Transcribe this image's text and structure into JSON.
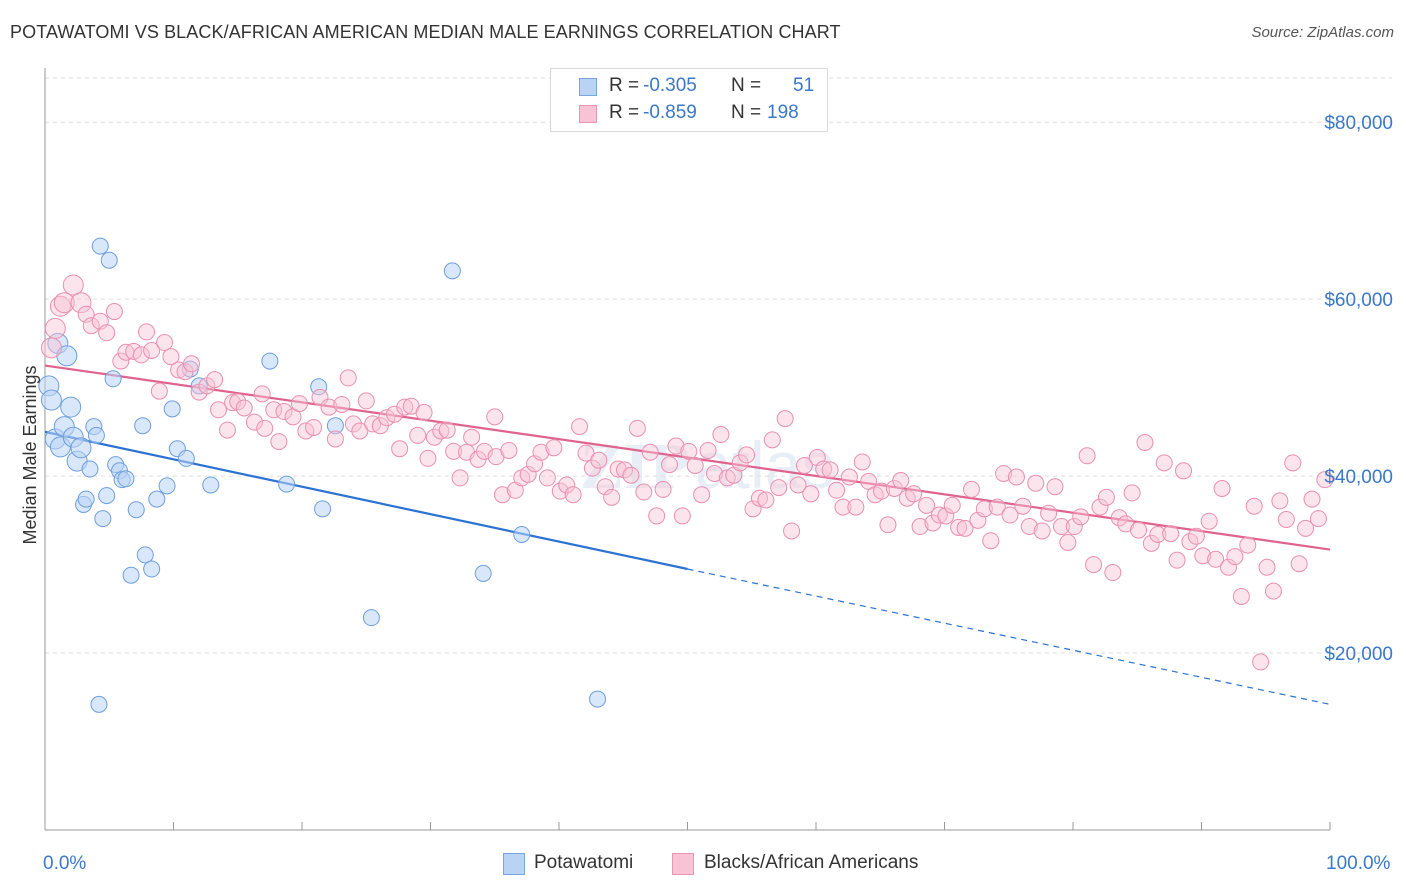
{
  "header": {
    "title": "POTAWATOMI VS BLACK/AFRICAN AMERICAN MEDIAN MALE EARNINGS CORRELATION CHART",
    "source": "Source: ZipAtlas.com"
  },
  "legend": {
    "rows": [
      {
        "r_label": "R =",
        "r_value": "-0.305",
        "n_label": "N =",
        "n_value": "51"
      },
      {
        "r_label": "R =",
        "r_value": "-0.859",
        "n_label": "N =",
        "n_value": "198"
      }
    ]
  },
  "colors": {
    "blue": "#3b7dd8",
    "blue_fill": "#b9d3f5",
    "pink": "#e46d94",
    "pink_fill": "#f8c3d4",
    "tick": "#3a78c9",
    "grid": "#dddddd"
  },
  "chart_data": {
    "type": "scatter",
    "title": "POTAWATOMI VS BLACK/AFRICAN AMERICAN MEDIAN MALE EARNINGS CORRELATION CHART",
    "xlabel": "",
    "ylabel": "Median Male Earnings",
    "xlim": [
      0,
      100
    ],
    "ylim": [
      0,
      85000
    ],
    "x_tick_labels": [
      "0.0%",
      "100.0%"
    ],
    "y_ticks": [
      20000,
      40000,
      60000,
      80000
    ],
    "y_tick_labels": [
      "$20,000",
      "$40,000",
      "$60,000",
      "$80,000"
    ],
    "grid": "horizontal dashed",
    "legend_placement": "top-center",
    "bottom_legend": [
      "Potawatomi",
      "Blacks/African Americans"
    ],
    "series": [
      {
        "name": "Potawatomi",
        "color": "#3b7dd8",
        "trend": {
          "x0": 0,
          "y0": 45000,
          "x1": 50,
          "y1": 29500,
          "dashed_to_x": 100,
          "dashed_to_y": 14200
        },
        "points": [
          [
            0.3,
            50200
          ],
          [
            0.5,
            48600
          ],
          [
            0.8,
            44200
          ],
          [
            1.0,
            55000
          ],
          [
            1.2,
            43300
          ],
          [
            1.5,
            45600
          ],
          [
            1.7,
            53600
          ],
          [
            2.0,
            47800
          ],
          [
            2.2,
            44400
          ],
          [
            2.5,
            41700
          ],
          [
            2.8,
            43200
          ],
          [
            3.0,
            36800
          ],
          [
            3.2,
            37400
          ],
          [
            3.5,
            40800
          ],
          [
            3.8,
            45600
          ],
          [
            4.0,
            44600
          ],
          [
            4.3,
            66000
          ],
          [
            4.5,
            35200
          ],
          [
            4.8,
            37800
          ],
          [
            5.0,
            64400
          ],
          [
            5.3,
            51000
          ],
          [
            5.5,
            41300
          ],
          [
            5.8,
            40600
          ],
          [
            6.0,
            39600
          ],
          [
            6.3,
            39700
          ],
          [
            7.1,
            36200
          ],
          [
            6.7,
            28800
          ],
          [
            7.6,
            45700
          ],
          [
            7.8,
            31100
          ],
          [
            8.3,
            29500
          ],
          [
            8.7,
            37400
          ],
          [
            9.5,
            38900
          ],
          [
            9.9,
            47600
          ],
          [
            10.3,
            43100
          ],
          [
            11.0,
            42000
          ],
          [
            11.3,
            52100
          ],
          [
            12.0,
            50200
          ],
          [
            12.9,
            39000
          ],
          [
            17.5,
            53000
          ],
          [
            18.8,
            39100
          ],
          [
            21.3,
            50100
          ],
          [
            21.6,
            36300
          ],
          [
            22.6,
            45700
          ],
          [
            25.4,
            24000
          ],
          [
            31.7,
            63200
          ],
          [
            34.1,
            29000
          ],
          [
            37.1,
            33400
          ],
          [
            43.0,
            14800
          ],
          [
            4.2,
            14200
          ]
        ]
      },
      {
        "name": "Blacks/African Americans",
        "color": "#e46d94",
        "trend": {
          "x0": 0,
          "y0": 52500,
          "x1": 100,
          "y1": 31700
        },
        "points": [
          [
            0.5,
            54500
          ],
          [
            0.8,
            56700
          ],
          [
            1.2,
            59200
          ],
          [
            1.5,
            59600
          ],
          [
            2.2,
            61600
          ],
          [
            2.8,
            59600
          ],
          [
            3.2,
            58300
          ],
          [
            3.6,
            57000
          ],
          [
            4.3,
            57500
          ],
          [
            4.8,
            56200
          ],
          [
            5.4,
            58600
          ],
          [
            5.9,
            53000
          ],
          [
            6.3,
            54000
          ],
          [
            6.9,
            54100
          ],
          [
            7.5,
            53700
          ],
          [
            7.9,
            56300
          ],
          [
            8.3,
            54200
          ],
          [
            8.9,
            49600
          ],
          [
            9.3,
            55100
          ],
          [
            9.8,
            53500
          ],
          [
            10.4,
            52000
          ],
          [
            10.9,
            51800
          ],
          [
            11.4,
            52700
          ],
          [
            12.0,
            49500
          ],
          [
            12.6,
            50200
          ],
          [
            13.2,
            50900
          ],
          [
            13.5,
            47500
          ],
          [
            14.2,
            45200
          ],
          [
            14.6,
            48300
          ],
          [
            15.0,
            48400
          ],
          [
            15.5,
            47700
          ],
          [
            16.3,
            46100
          ],
          [
            16.9,
            49300
          ],
          [
            17.1,
            45400
          ],
          [
            17.8,
            47500
          ],
          [
            18.2,
            43900
          ],
          [
            18.6,
            47300
          ],
          [
            19.3,
            46700
          ],
          [
            19.8,
            48200
          ],
          [
            20.3,
            45100
          ],
          [
            20.9,
            45500
          ],
          [
            21.4,
            48900
          ],
          [
            22.1,
            47800
          ],
          [
            22.6,
            44200
          ],
          [
            23.1,
            48100
          ],
          [
            23.6,
            51100
          ],
          [
            24.0,
            45900
          ],
          [
            24.5,
            45100
          ],
          [
            25.0,
            48500
          ],
          [
            25.5,
            45900
          ],
          [
            26.1,
            45700
          ],
          [
            26.6,
            46600
          ],
          [
            27.2,
            47000
          ],
          [
            27.6,
            43100
          ],
          [
            28.0,
            47800
          ],
          [
            28.5,
            47900
          ],
          [
            29.0,
            44600
          ],
          [
            29.5,
            47200
          ],
          [
            29.8,
            42000
          ],
          [
            30.3,
            44400
          ],
          [
            30.8,
            45100
          ],
          [
            31.3,
            45200
          ],
          [
            31.8,
            42800
          ],
          [
            32.3,
            39800
          ],
          [
            32.8,
            42700
          ],
          [
            33.2,
            44400
          ],
          [
            33.7,
            41900
          ],
          [
            34.2,
            42800
          ],
          [
            35.0,
            46700
          ],
          [
            35.1,
            42200
          ],
          [
            35.6,
            37900
          ],
          [
            36.1,
            42900
          ],
          [
            36.6,
            38400
          ],
          [
            37.1,
            39800
          ],
          [
            37.6,
            40200
          ],
          [
            38.1,
            41400
          ],
          [
            38.6,
            42700
          ],
          [
            39.1,
            39800
          ],
          [
            39.6,
            43200
          ],
          [
            40.1,
            38300
          ],
          [
            40.6,
            39000
          ],
          [
            41.1,
            37900
          ],
          [
            41.6,
            45600
          ],
          [
            42.1,
            42600
          ],
          [
            42.6,
            40900
          ],
          [
            43.1,
            41800
          ],
          [
            43.6,
            38800
          ],
          [
            44.1,
            37600
          ],
          [
            44.6,
            40800
          ],
          [
            45.1,
            40700
          ],
          [
            45.6,
            40100
          ],
          [
            46.1,
            45400
          ],
          [
            46.6,
            38200
          ],
          [
            47.1,
            42700
          ],
          [
            47.6,
            35500
          ],
          [
            48.1,
            38500
          ],
          [
            48.6,
            41300
          ],
          [
            49.1,
            43400
          ],
          [
            49.6,
            35500
          ],
          [
            50.1,
            42800
          ],
          [
            50.6,
            41200
          ],
          [
            51.1,
            37900
          ],
          [
            51.6,
            42900
          ],
          [
            52.1,
            40300
          ],
          [
            52.6,
            44700
          ],
          [
            53.1,
            39800
          ],
          [
            53.6,
            40100
          ],
          [
            54.1,
            41500
          ],
          [
            54.6,
            42400
          ],
          [
            55.1,
            36300
          ],
          [
            55.6,
            37500
          ],
          [
            56.1,
            37300
          ],
          [
            56.6,
            44100
          ],
          [
            57.1,
            38700
          ],
          [
            57.6,
            46500
          ],
          [
            58.1,
            33800
          ],
          [
            58.6,
            39000
          ],
          [
            59.1,
            41200
          ],
          [
            59.6,
            38000
          ],
          [
            60.1,
            42100
          ],
          [
            60.6,
            40800
          ],
          [
            61.1,
            40700
          ],
          [
            61.6,
            38400
          ],
          [
            62.1,
            36500
          ],
          [
            62.6,
            39900
          ],
          [
            63.1,
            36500
          ],
          [
            63.6,
            41600
          ],
          [
            64.1,
            39400
          ],
          [
            64.6,
            37900
          ],
          [
            65.1,
            38300
          ],
          [
            65.6,
            34500
          ],
          [
            66.1,
            38600
          ],
          [
            66.6,
            39500
          ],
          [
            67.1,
            37500
          ],
          [
            67.6,
            38000
          ],
          [
            68.1,
            34300
          ],
          [
            68.6,
            36700
          ],
          [
            69.1,
            34700
          ],
          [
            69.6,
            35600
          ],
          [
            70.1,
            35500
          ],
          [
            70.6,
            36700
          ],
          [
            71.1,
            34200
          ],
          [
            71.6,
            34100
          ],
          [
            72.1,
            38500
          ],
          [
            72.6,
            35000
          ],
          [
            73.1,
            36300
          ],
          [
            73.6,
            32700
          ],
          [
            74.1,
            36500
          ],
          [
            74.6,
            40300
          ],
          [
            75.1,
            35600
          ],
          [
            75.6,
            39900
          ],
          [
            76.1,
            36600
          ],
          [
            76.6,
            34300
          ],
          [
            77.1,
            39200
          ],
          [
            77.6,
            33800
          ],
          [
            78.1,
            35800
          ],
          [
            78.6,
            38800
          ],
          [
            79.1,
            34300
          ],
          [
            79.6,
            32500
          ],
          [
            80.1,
            34300
          ],
          [
            80.6,
            35400
          ],
          [
            81.1,
            42300
          ],
          [
            81.6,
            30000
          ],
          [
            82.1,
            36500
          ],
          [
            82.6,
            37600
          ],
          [
            83.1,
            29100
          ],
          [
            83.6,
            35300
          ],
          [
            84.1,
            34600
          ],
          [
            84.6,
            38100
          ],
          [
            85.1,
            33900
          ],
          [
            85.6,
            43800
          ],
          [
            86.1,
            32400
          ],
          [
            86.6,
            33400
          ],
          [
            87.1,
            41500
          ],
          [
            87.6,
            33500
          ],
          [
            88.1,
            30500
          ],
          [
            88.6,
            40600
          ],
          [
            89.1,
            32600
          ],
          [
            89.6,
            33200
          ],
          [
            90.1,
            31000
          ],
          [
            90.6,
            34900
          ],
          [
            91.1,
            30600
          ],
          [
            91.6,
            38600
          ],
          [
            92.1,
            29700
          ],
          [
            92.6,
            30900
          ],
          [
            93.1,
            26400
          ],
          [
            93.6,
            32200
          ],
          [
            94.1,
            36600
          ],
          [
            94.6,
            19000
          ],
          [
            95.1,
            29700
          ],
          [
            95.6,
            27000
          ],
          [
            96.1,
            37200
          ],
          [
            96.6,
            35100
          ],
          [
            97.1,
            41500
          ],
          [
            97.6,
            30100
          ],
          [
            98.1,
            34100
          ],
          [
            98.6,
            37400
          ],
          [
            99.1,
            35200
          ],
          [
            99.6,
            39600
          ]
        ]
      }
    ]
  }
}
